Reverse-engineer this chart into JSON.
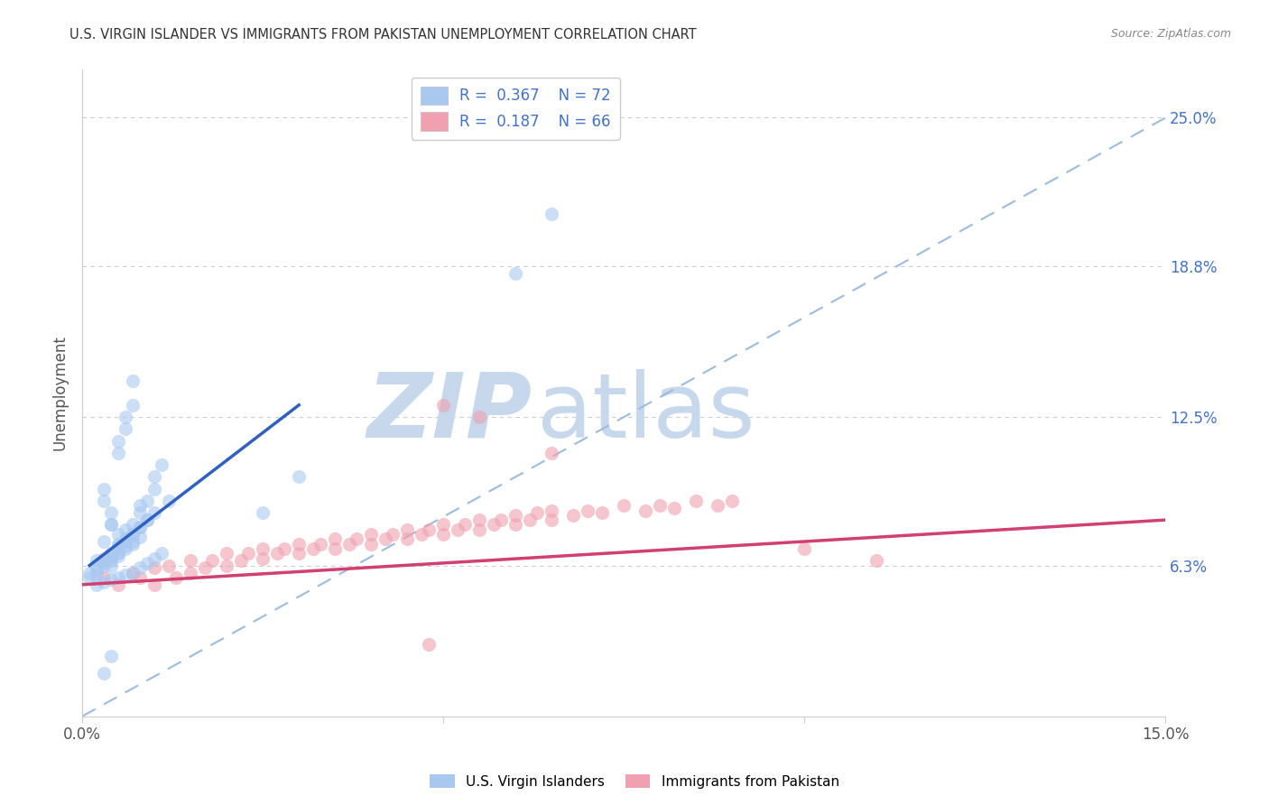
{
  "title": "U.S. VIRGIN ISLANDER VS IMMIGRANTS FROM PAKISTAN UNEMPLOYMENT CORRELATION CHART",
  "source": "Source: ZipAtlas.com",
  "ylabel": "Unemployment",
  "ytick_labels": [
    "25.0%",
    "18.8%",
    "12.5%",
    "6.3%"
  ],
  "ytick_values": [
    0.25,
    0.188,
    0.125,
    0.063
  ],
  "xlim": [
    0.0,
    0.15
  ],
  "ylim": [
    0.0,
    0.27
  ],
  "color_vi": "#A8C8F0",
  "color_pk": "#F0A0B0",
  "color_vi_line": "#3060C0",
  "color_pk_line": "#D04070",
  "color_dashed": "#9BBCDC",
  "watermark_zip": "ZIP",
  "watermark_atlas": "atlas",
  "watermark_color_zip": "#C8D8EC",
  "watermark_color_atlas": "#C8D8EC",
  "vi_scatter_x": [
    0.003,
    0.004,
    0.004,
    0.005,
    0.005,
    0.005,
    0.006,
    0.006,
    0.006,
    0.007,
    0.007,
    0.007,
    0.008,
    0.008,
    0.008,
    0.009,
    0.009,
    0.01,
    0.01,
    0.011,
    0.003,
    0.003,
    0.004,
    0.004,
    0.005,
    0.005,
    0.006,
    0.006,
    0.007,
    0.007,
    0.002,
    0.002,
    0.003,
    0.003,
    0.004,
    0.004,
    0.005,
    0.006,
    0.007,
    0.008,
    0.001,
    0.001,
    0.002,
    0.002,
    0.003,
    0.003,
    0.004,
    0.004,
    0.005,
    0.005,
    0.006,
    0.007,
    0.008,
    0.009,
    0.01,
    0.012,
    0.002,
    0.003,
    0.004,
    0.005,
    0.006,
    0.007,
    0.008,
    0.009,
    0.01,
    0.011,
    0.025,
    0.03,
    0.06,
    0.065,
    0.003,
    0.004
  ],
  "vi_scatter_y": [
    0.073,
    0.067,
    0.08,
    0.072,
    0.068,
    0.076,
    0.074,
    0.071,
    0.078,
    0.076,
    0.073,
    0.08,
    0.085,
    0.079,
    0.088,
    0.082,
    0.09,
    0.095,
    0.1,
    0.105,
    0.095,
    0.09,
    0.085,
    0.08,
    0.11,
    0.115,
    0.12,
    0.125,
    0.13,
    0.14,
    0.065,
    0.062,
    0.064,
    0.066,
    0.063,
    0.065,
    0.067,
    0.07,
    0.072,
    0.075,
    0.06,
    0.058,
    0.059,
    0.061,
    0.063,
    0.065,
    0.066,
    0.068,
    0.069,
    0.071,
    0.073,
    0.076,
    0.079,
    0.082,
    0.085,
    0.09,
    0.055,
    0.056,
    0.057,
    0.058,
    0.059,
    0.06,
    0.062,
    0.064,
    0.066,
    0.068,
    0.085,
    0.1,
    0.185,
    0.21,
    0.018,
    0.025
  ],
  "pk_scatter_x": [
    0.003,
    0.005,
    0.007,
    0.008,
    0.01,
    0.01,
    0.012,
    0.013,
    0.015,
    0.015,
    0.017,
    0.018,
    0.02,
    0.02,
    0.022,
    0.023,
    0.025,
    0.025,
    0.027,
    0.028,
    0.03,
    0.03,
    0.032,
    0.033,
    0.035,
    0.035,
    0.037,
    0.038,
    0.04,
    0.04,
    0.042,
    0.043,
    0.045,
    0.045,
    0.047,
    0.048,
    0.05,
    0.05,
    0.052,
    0.053,
    0.055,
    0.055,
    0.057,
    0.058,
    0.06,
    0.06,
    0.062,
    0.063,
    0.065,
    0.065,
    0.068,
    0.07,
    0.072,
    0.075,
    0.078,
    0.08,
    0.082,
    0.085,
    0.088,
    0.09,
    0.05,
    0.055,
    0.065,
    0.1,
    0.11,
    0.048
  ],
  "pk_scatter_y": [
    0.058,
    0.055,
    0.06,
    0.058,
    0.062,
    0.055,
    0.063,
    0.058,
    0.06,
    0.065,
    0.062,
    0.065,
    0.063,
    0.068,
    0.065,
    0.068,
    0.066,
    0.07,
    0.068,
    0.07,
    0.068,
    0.072,
    0.07,
    0.072,
    0.07,
    0.074,
    0.072,
    0.074,
    0.072,
    0.076,
    0.074,
    0.076,
    0.074,
    0.078,
    0.076,
    0.078,
    0.076,
    0.08,
    0.078,
    0.08,
    0.078,
    0.082,
    0.08,
    0.082,
    0.08,
    0.084,
    0.082,
    0.085,
    0.082,
    0.086,
    0.084,
    0.086,
    0.085,
    0.088,
    0.086,
    0.088,
    0.087,
    0.09,
    0.088,
    0.09,
    0.13,
    0.125,
    0.11,
    0.07,
    0.065,
    0.03
  ],
  "vi_line_x": [
    0.001,
    0.03
  ],
  "vi_line_y": [
    0.063,
    0.13
  ],
  "pk_line_x": [
    0.0,
    0.15
  ],
  "pk_line_y": [
    0.055,
    0.082
  ],
  "diag_line_x": [
    0.0,
    0.15
  ],
  "diag_line_y": [
    0.0,
    0.25
  ]
}
